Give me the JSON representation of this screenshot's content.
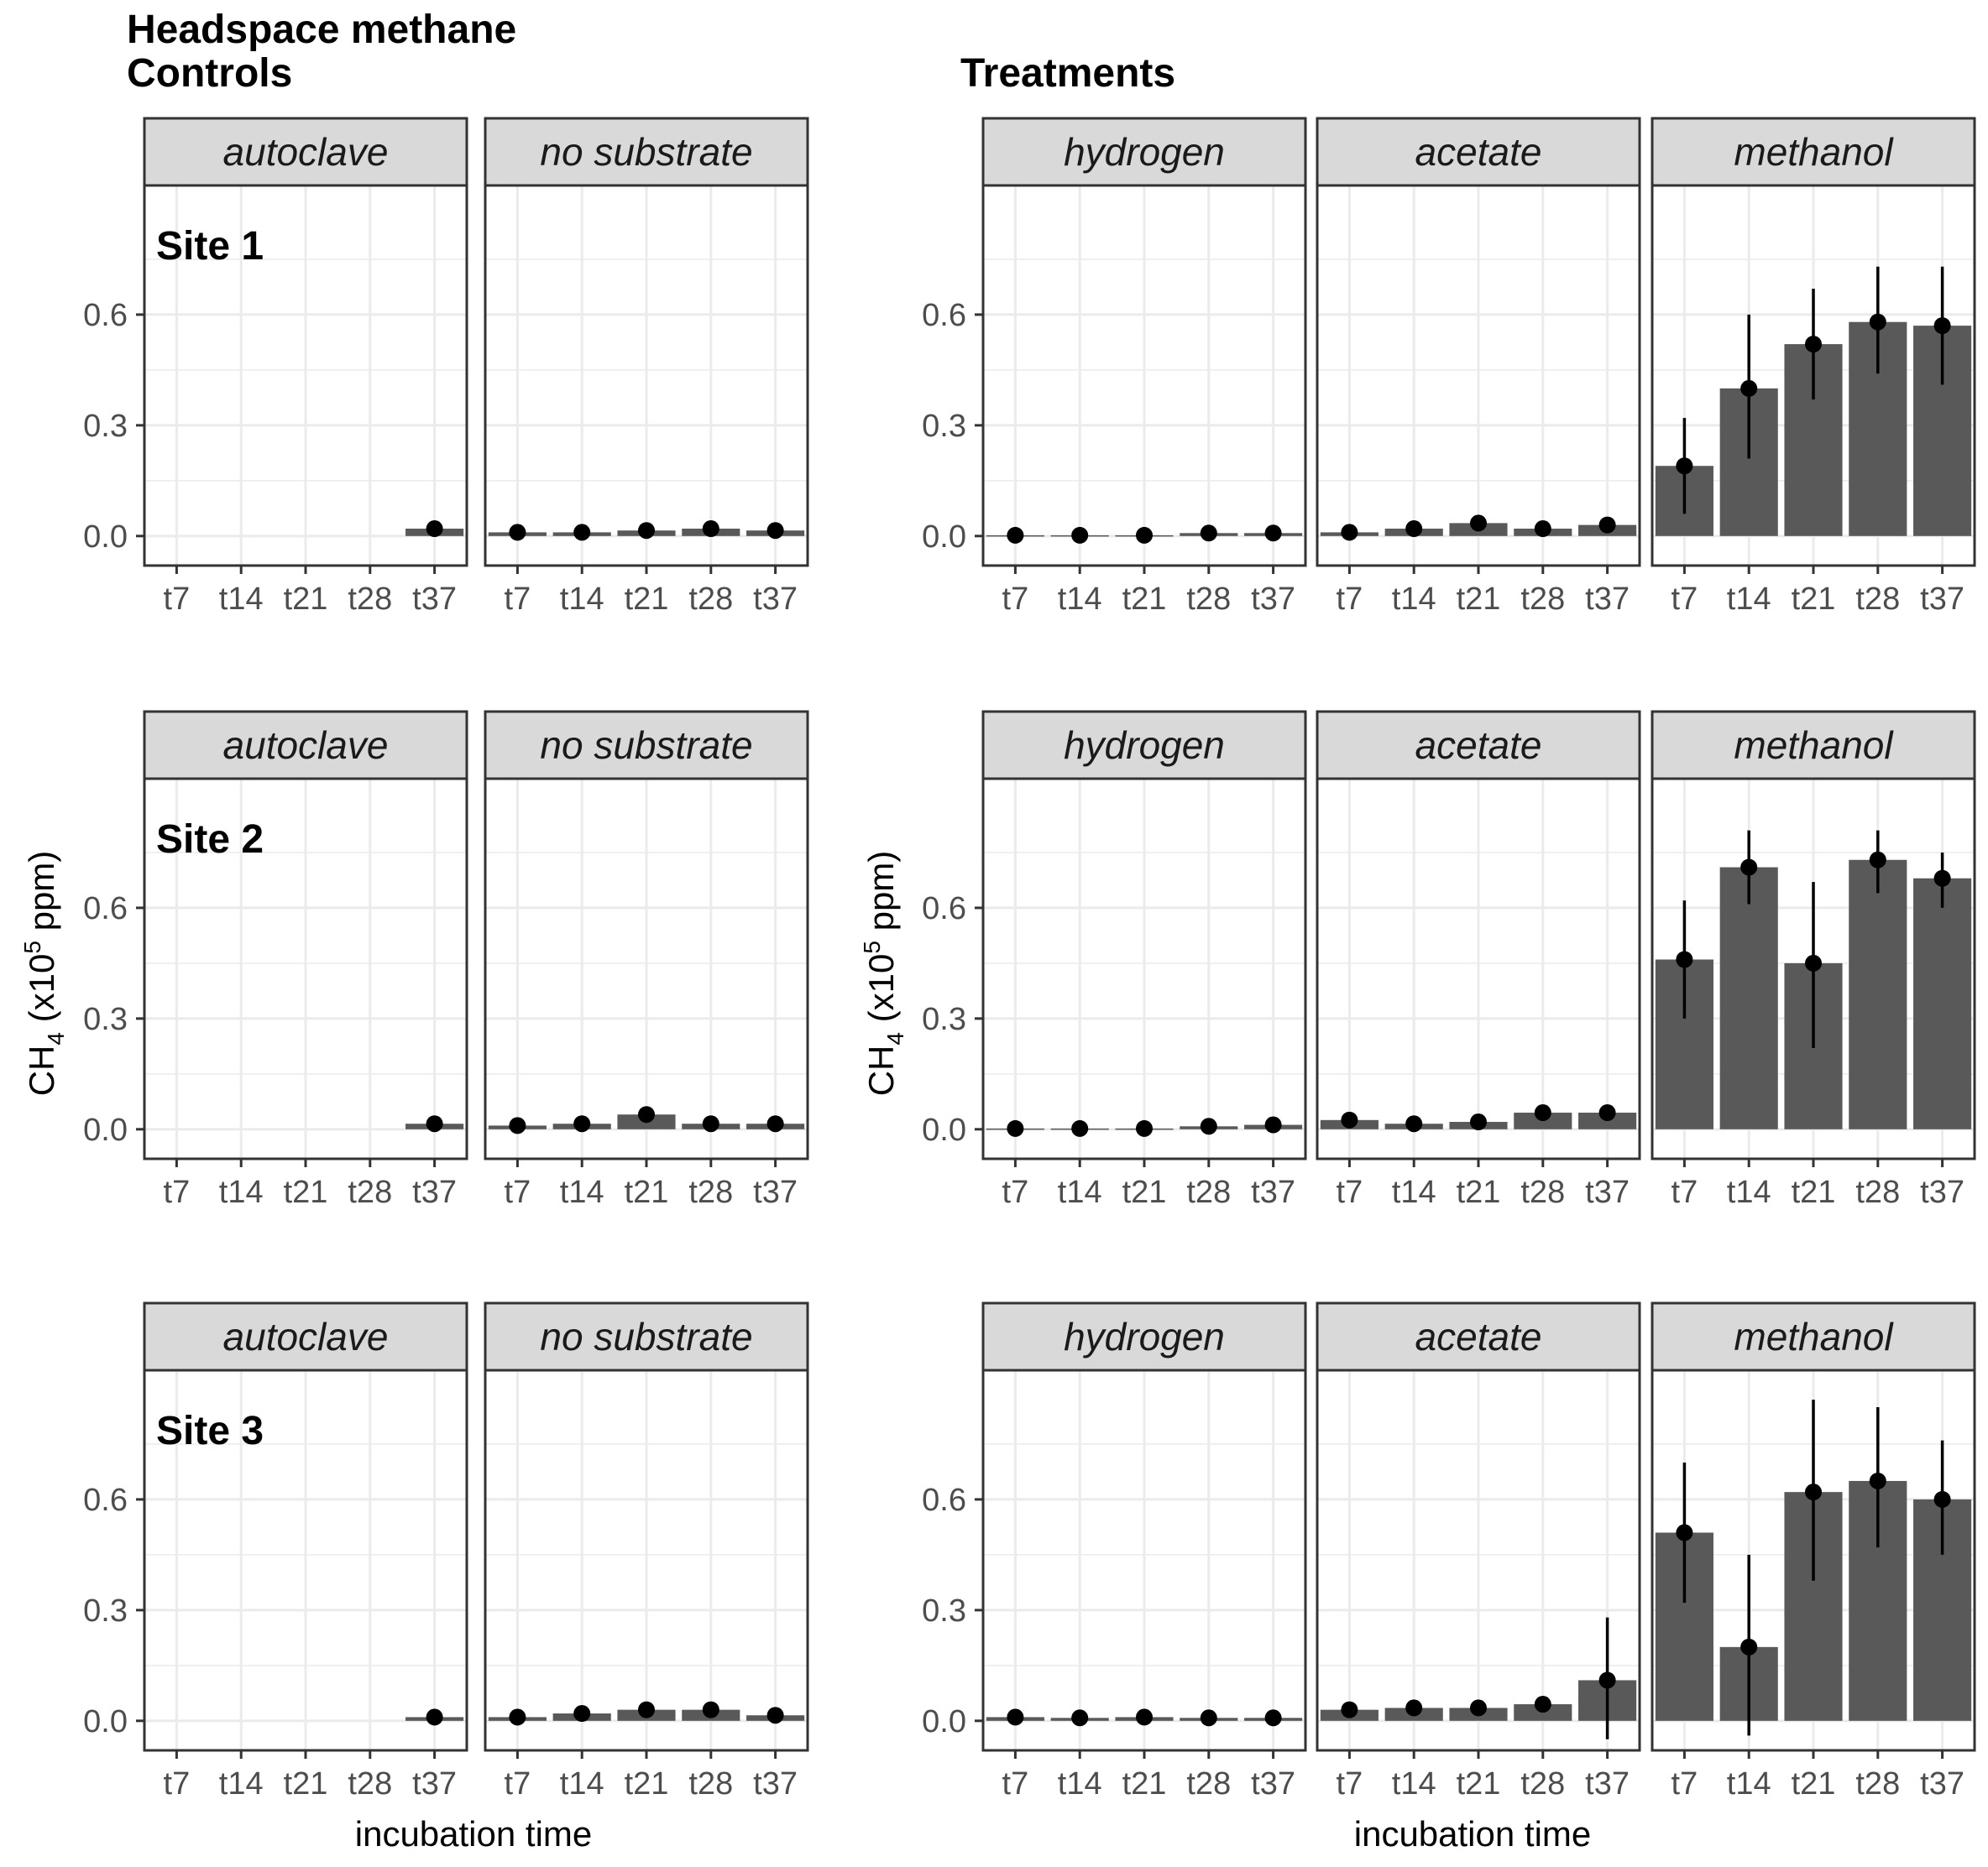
{
  "headings": {
    "main_title": "Headspace methane",
    "controls": "Controls",
    "treatments": "Treatments"
  },
  "axis": {
    "y_main": "CH",
    "y_sub": "4",
    "y_mid": " (x10",
    "y_sup": "5",
    "y_end": " ppm)",
    "x_label": "incubation time",
    "y_ticks": [
      "0.0",
      "0.3",
      "0.6"
    ]
  },
  "colors": {
    "bar": "#595959",
    "point": "#000000",
    "strip_fill": "#d9d9d9",
    "panel_border": "#333333",
    "grid": "#ebebeb"
  },
  "chart_data": {
    "type": "bar",
    "categories": [
      "t7",
      "t14",
      "t21",
      "t28",
      "t37"
    ],
    "ylim": [
      -0.08,
      0.95
    ],
    "grid": true,
    "error_bars": "point with vertical range",
    "rows": [
      {
        "site": "Site 1",
        "panels": [
          {
            "group": "controls",
            "strip": "autoclave",
            "values": [
              null,
              null,
              null,
              null,
              0.02
            ],
            "err_low": [
              null,
              null,
              null,
              null,
              0.01
            ],
            "err_high": [
              null,
              null,
              null,
              null,
              0.03
            ]
          },
          {
            "group": "controls",
            "strip": "no substrate",
            "values": [
              0.01,
              0.01,
              0.015,
              0.02,
              0.015
            ],
            "err_low": [
              0.005,
              0.005,
              0.01,
              0.015,
              0.01
            ],
            "err_high": [
              0.015,
              0.015,
              0.02,
              0.025,
              0.02
            ]
          },
          {
            "group": "treatments",
            "strip": "hydrogen",
            "values": [
              0.002,
              0.002,
              0.002,
              0.008,
              0.008
            ],
            "err_low": [
              0.0,
              0.0,
              0.0,
              0.004,
              0.004
            ],
            "err_high": [
              0.004,
              0.004,
              0.004,
              0.012,
              0.012
            ]
          },
          {
            "group": "treatments",
            "strip": "acetate",
            "values": [
              0.01,
              0.02,
              0.035,
              0.02,
              0.03
            ],
            "err_low": [
              0.005,
              0.015,
              0.025,
              0.015,
              0.02
            ],
            "err_high": [
              0.015,
              0.025,
              0.045,
              0.025,
              0.04
            ]
          },
          {
            "group": "treatments",
            "strip": "methanol",
            "values": [
              0.19,
              0.4,
              0.52,
              0.58,
              0.57
            ],
            "err_low": [
              0.06,
              0.21,
              0.37,
              0.44,
              0.41
            ],
            "err_high": [
              0.32,
              0.6,
              0.67,
              0.73,
              0.73
            ]
          }
        ]
      },
      {
        "site": "Site 2",
        "panels": [
          {
            "group": "controls",
            "strip": "autoclave",
            "values": [
              null,
              null,
              null,
              null,
              0.015
            ],
            "err_low": [
              null,
              null,
              null,
              null,
              0.01
            ],
            "err_high": [
              null,
              null,
              null,
              null,
              0.02
            ]
          },
          {
            "group": "controls",
            "strip": "no substrate",
            "values": [
              0.01,
              0.015,
              0.04,
              0.015,
              0.015
            ],
            "err_low": [
              0.005,
              0.01,
              0.03,
              0.01,
              0.01
            ],
            "err_high": [
              0.015,
              0.02,
              0.05,
              0.02,
              0.02
            ]
          },
          {
            "group": "treatments",
            "strip": "hydrogen",
            "values": [
              0.002,
              0.002,
              0.002,
              0.008,
              0.012
            ],
            "err_low": [
              0.0,
              0.0,
              0.0,
              0.004,
              0.008
            ],
            "err_high": [
              0.004,
              0.004,
              0.004,
              0.012,
              0.016
            ]
          },
          {
            "group": "treatments",
            "strip": "acetate",
            "values": [
              0.025,
              0.015,
              0.02,
              0.045,
              0.045
            ],
            "err_low": [
              0.015,
              0.01,
              0.015,
              0.035,
              0.035
            ],
            "err_high": [
              0.035,
              0.02,
              0.025,
              0.055,
              0.055
            ]
          },
          {
            "group": "treatments",
            "strip": "methanol",
            "values": [
              0.46,
              0.71,
              0.45,
              0.73,
              0.68
            ],
            "err_low": [
              0.3,
              0.61,
              0.22,
              0.64,
              0.6
            ],
            "err_high": [
              0.62,
              0.81,
              0.67,
              0.81,
              0.75
            ]
          }
        ]
      },
      {
        "site": "Site 3",
        "panels": [
          {
            "group": "controls",
            "strip": "autoclave",
            "values": [
              null,
              null,
              null,
              null,
              0.01
            ],
            "err_low": [
              null,
              null,
              null,
              null,
              0.005
            ],
            "err_high": [
              null,
              null,
              null,
              null,
              0.015
            ]
          },
          {
            "group": "controls",
            "strip": "no substrate",
            "values": [
              0.01,
              0.02,
              0.03,
              0.03,
              0.015
            ],
            "err_low": [
              0.005,
              0.015,
              0.02,
              0.02,
              0.01
            ],
            "err_high": [
              0.015,
              0.025,
              0.04,
              0.04,
              0.02
            ]
          },
          {
            "group": "treatments",
            "strip": "hydrogen",
            "values": [
              0.01,
              0.008,
              0.01,
              0.008,
              0.008
            ],
            "err_low": [
              0.005,
              0.004,
              0.005,
              0.004,
              0.004
            ],
            "err_high": [
              0.015,
              0.012,
              0.015,
              0.012,
              0.012
            ]
          },
          {
            "group": "treatments",
            "strip": "acetate",
            "values": [
              0.03,
              0.035,
              0.035,
              0.045,
              0.11
            ],
            "err_low": [
              0.02,
              0.025,
              0.025,
              0.035,
              -0.05
            ],
            "err_high": [
              0.04,
              0.045,
              0.045,
              0.055,
              0.28
            ]
          },
          {
            "group": "treatments",
            "strip": "methanol",
            "values": [
              0.51,
              0.2,
              0.62,
              0.65,
              0.6
            ],
            "err_low": [
              0.32,
              -0.04,
              0.38,
              0.47,
              0.45
            ],
            "err_high": [
              0.7,
              0.45,
              0.87,
              0.85,
              0.76
            ]
          }
        ]
      }
    ]
  }
}
